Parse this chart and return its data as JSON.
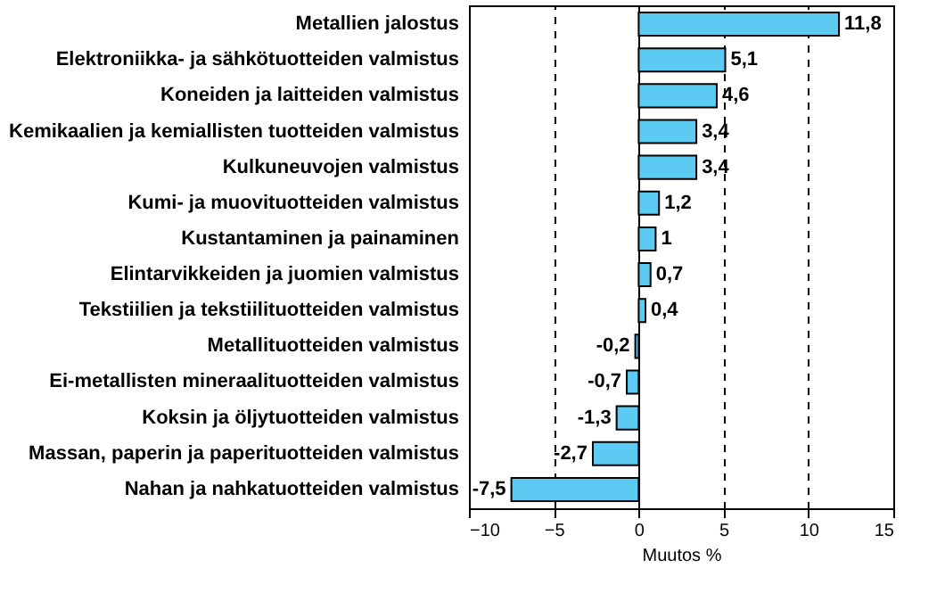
{
  "chart_data": {
    "type": "bar",
    "orientation": "horizontal",
    "xlabel": "Muutos %",
    "categories": [
      "Metallien jalostus",
      "Elektroniikka- ja sähkötuotteiden valmistus",
      "Koneiden ja laitteiden valmistus",
      "Kemikaalien ja kemiallisten tuotteiden valmistus",
      "Kulkuneuvojen valmistus",
      "Kumi- ja muovituotteiden valmistus",
      "Kustantaminen ja painaminen",
      "Elintarvikkeiden ja juomien valmistus",
      "Tekstiilien ja tekstiilituotteiden valmistus",
      "Metallituotteiden valmistus",
      "Ei-metallisten mineraalituotteiden valmistus",
      "Koksin ja öljytuotteiden valmistus",
      "Massan, paperin ja paperituotteiden valmistus",
      "Nahan ja nahkatuotteiden valmistus"
    ],
    "values": [
      11.8,
      5.1,
      4.6,
      3.4,
      3.4,
      1.2,
      1,
      0.7,
      0.4,
      -0.2,
      -0.7,
      -1.3,
      -2.7,
      -7.5
    ],
    "value_labels": [
      "11,8",
      "5,1",
      "4,6",
      "3,4",
      "3,4",
      "1,2",
      "1",
      "0,7",
      "0,4",
      "-0,2",
      "-0,7",
      "-1,3",
      "-2,7",
      "-7,5"
    ],
    "color": "#5ccaf2",
    "xlim": [
      -10,
      15
    ],
    "xticks": [
      -10,
      -5,
      0,
      5,
      10,
      15
    ],
    "grid": "x",
    "line_style": "dashed"
  }
}
